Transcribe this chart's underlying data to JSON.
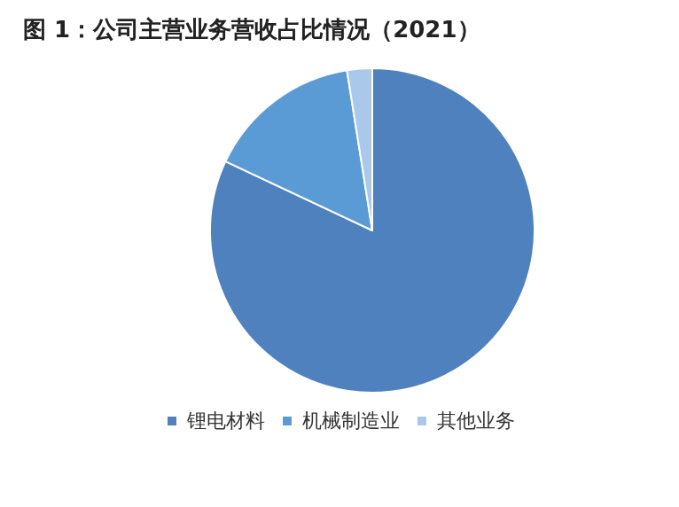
{
  "chart_data": {
    "type": "pie",
    "title": "图 1：公司主营业务营收占比情况（2021）",
    "categories": [
      "锂电材料",
      "机械制造业",
      "其他业务"
    ],
    "values": [
      82,
      15.5,
      2.5
    ],
    "colors": [
      "#4e81bd",
      "#5b9bd5",
      "#a9c8ea"
    ],
    "legend": "bottom"
  }
}
